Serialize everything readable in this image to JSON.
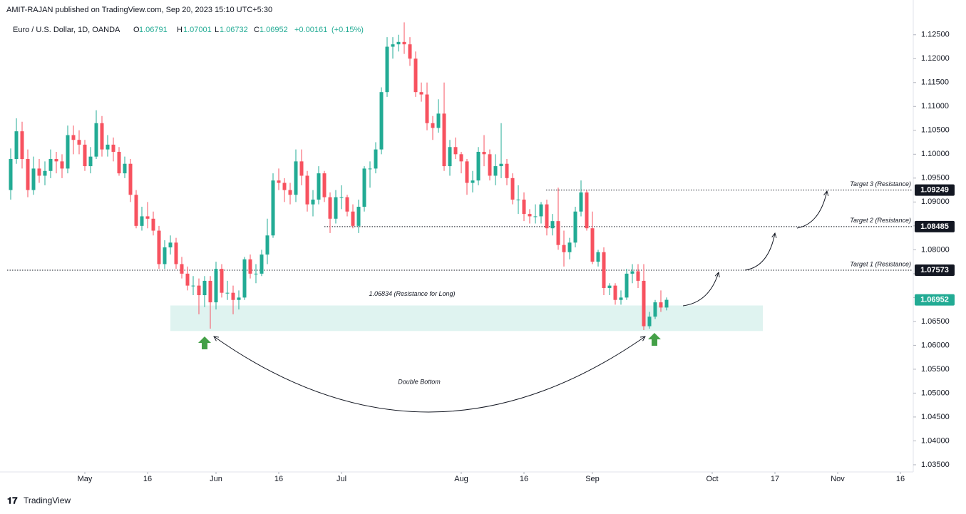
{
  "chart_data": {
    "type": "candlestick",
    "header": "AMIT-RAJAN published on TradingView.com, Sep 20, 2023 15:10 UTC+5:30",
    "title": "Euro / U.S. Dollar, 1D, OANDA",
    "ohlc_labels": [
      "O",
      "H",
      "L",
      "C"
    ],
    "change": {
      "value": 0.00161,
      "label": "+0.00161"
    },
    "change_pct": {
      "value": 0.15,
      "label": "(+0.15%)"
    },
    "footer": "TradingView",
    "up_color": "#22ab94",
    "down_color": "#f7525f",
    "grid": false,
    "x": [
      "2023-04-12",
      "2023-04-13",
      "2023-04-14",
      "2023-04-17",
      "2023-04-18",
      "2023-04-19",
      "2023-04-20",
      "2023-04-21",
      "2023-04-24",
      "2023-04-25",
      "2023-04-26",
      "2023-04-27",
      "2023-04-28",
      "2023-05-01",
      "2023-05-02",
      "2023-05-03",
      "2023-05-04",
      "2023-05-05",
      "2023-05-08",
      "2023-05-09",
      "2023-05-10",
      "2023-05-11",
      "2023-05-12",
      "2023-05-15",
      "2023-05-16",
      "2023-05-17",
      "2023-05-18",
      "2023-05-19",
      "2023-05-22",
      "2023-05-23",
      "2023-05-24",
      "2023-05-25",
      "2023-05-26",
      "2023-05-29",
      "2023-05-30",
      "2023-05-31",
      "2023-06-01",
      "2023-06-02",
      "2023-06-05",
      "2023-06-06",
      "2023-06-07",
      "2023-06-08",
      "2023-06-09",
      "2023-06-12",
      "2023-06-13",
      "2023-06-14",
      "2023-06-15",
      "2023-06-16",
      "2023-06-19",
      "2023-06-20",
      "2023-06-21",
      "2023-06-22",
      "2023-06-23",
      "2023-06-26",
      "2023-06-27",
      "2023-06-28",
      "2023-06-29",
      "2023-06-30",
      "2023-07-03",
      "2023-07-04",
      "2023-07-05",
      "2023-07-06",
      "2023-07-07",
      "2023-07-10",
      "2023-07-11",
      "2023-07-12",
      "2023-07-13",
      "2023-07-14",
      "2023-07-17",
      "2023-07-18",
      "2023-07-19",
      "2023-07-20",
      "2023-07-21",
      "2023-07-24",
      "2023-07-25",
      "2023-07-26",
      "2023-07-27",
      "2023-07-28",
      "2023-07-31",
      "2023-08-01",
      "2023-08-02",
      "2023-08-03",
      "2023-08-04",
      "2023-08-07",
      "2023-08-08",
      "2023-08-09",
      "2023-08-10",
      "2023-08-11",
      "2023-08-14",
      "2023-08-15",
      "2023-08-16",
      "2023-08-17",
      "2023-08-18",
      "2023-08-21",
      "2023-08-22",
      "2023-08-23",
      "2023-08-24",
      "2023-08-25",
      "2023-08-28",
      "2023-08-29",
      "2023-08-30",
      "2023-08-31",
      "2023-09-01",
      "2023-09-04",
      "2023-09-05",
      "2023-09-06",
      "2023-09-07",
      "2023-09-08",
      "2023-09-11",
      "2023-09-12",
      "2023-09-13",
      "2023-09-14",
      "2023-09-15",
      "2023-09-18",
      "2023-09-19",
      "2023-09-20"
    ],
    "open": [
      1.0925,
      1.099,
      1.1048,
      1.099,
      1.0925,
      1.097,
      1.0955,
      1.0965,
      1.099,
      1.0985,
      1.097,
      1.104,
      1.103,
      1.102,
      1.0975,
      1.0995,
      1.1065,
      1.101,
      1.102,
      1.1005,
      1.096,
      1.098,
      1.0915,
      1.085,
      1.087,
      1.0865,
      1.084,
      1.077,
      1.0805,
      1.0815,
      1.077,
      1.075,
      1.0725,
      1.0725,
      1.0705,
      1.0735,
      1.069,
      1.076,
      1.071,
      1.071,
      1.0695,
      1.07,
      1.078,
      1.075,
      1.075,
      1.079,
      1.083,
      1.0945,
      1.094,
      1.0925,
      1.0915,
      1.0985,
      1.0955,
      1.0895,
      1.0905,
      1.096,
      1.091,
      1.0865,
      1.091,
      1.091,
      1.088,
      1.085,
      1.089,
      1.097,
      1.097,
      1.101,
      1.113,
      1.1225,
      1.123,
      1.1235,
      1.123,
      1.12,
      1.113,
      1.1125,
      1.1065,
      1.1055,
      1.1085,
      1.0975,
      1.1015,
      1.1,
      1.0985,
      1.094,
      1.0945,
      1.1005,
      1.1,
      1.0955,
      1.0975,
      1.098,
      1.095,
      1.0905,
      1.0905,
      1.0875,
      1.087,
      1.087,
      1.0895,
      1.0845,
      1.086,
      1.081,
      1.0795,
      1.0815,
      1.088,
      1.092,
      1.0845,
      1.0775,
      1.0795,
      1.072,
      1.0725,
      1.0695,
      1.07,
      1.075,
      1.0755,
      1.0735,
      1.064,
      1.066,
      1.069,
      1.06791
    ],
    "high": [
      1.1012,
      1.1075,
      1.1068,
      1.101,
      1.0995,
      1.099,
      1.0985,
      1.101,
      1.1005,
      1.1,
      1.106,
      1.106,
      1.105,
      1.103,
      1.1015,
      1.1092,
      1.108,
      1.104,
      1.1035,
      1.1015,
      1.0995,
      1.099,
      1.0925,
      1.089,
      1.09,
      1.088,
      1.085,
      1.082,
      1.083,
      1.0825,
      1.0785,
      1.0765,
      1.0745,
      1.074,
      1.0745,
      1.0745,
      1.0775,
      1.077,
      1.0735,
      1.0725,
      1.0715,
      1.0785,
      1.079,
      1.077,
      1.08,
      1.0865,
      1.096,
      1.097,
      1.095,
      1.094,
      1.101,
      1.101,
      1.0965,
      1.0925,
      1.0975,
      1.0965,
      1.092,
      1.0925,
      1.0935,
      1.0915,
      1.0895,
      1.0905,
      1.0975,
      1.0985,
      1.1025,
      1.114,
      1.1245,
      1.1245,
      1.125,
      1.1276,
      1.1245,
      1.1215,
      1.115,
      1.115,
      1.108,
      1.1115,
      1.115,
      1.103,
      1.1035,
      1.1005,
      1.099,
      1.0965,
      1.1015,
      1.104,
      1.101,
      1.1,
      1.1065,
      1.099,
      1.096,
      1.0935,
      1.092,
      1.0885,
      1.0895,
      1.09,
      1.0905,
      1.0875,
      1.093,
      1.084,
      1.0825,
      1.089,
      1.0945,
      1.0925,
      1.088,
      1.08,
      1.0805,
      1.073,
      1.073,
      1.0715,
      1.076,
      1.077,
      1.077,
      1.077,
      1.067,
      1.0695,
      1.0715,
      1.07001
    ],
    "low": [
      1.0905,
      1.098,
      1.097,
      1.091,
      1.0915,
      1.094,
      1.0935,
      1.095,
      1.096,
      1.095,
      1.096,
      1.1,
      1.1,
      1.0965,
      1.096,
      1.099,
      1.0995,
      1.0995,
      1.0985,
      1.0955,
      1.095,
      1.09,
      1.0845,
      1.084,
      1.0845,
      1.083,
      1.076,
      1.076,
      1.079,
      1.076,
      1.074,
      1.0715,
      1.0705,
      1.0665,
      1.068,
      1.0635,
      1.0675,
      1.07,
      1.0695,
      1.0665,
      1.0675,
      1.0695,
      1.074,
      1.073,
      1.0745,
      1.077,
      1.0825,
      1.0925,
      1.09,
      1.0895,
      1.09,
      1.0935,
      1.088,
      1.087,
      1.0895,
      1.09,
      1.0835,
      1.0855,
      1.0885,
      1.087,
      1.0845,
      1.0835,
      1.088,
      1.093,
      1.096,
      1.1,
      1.112,
      1.12,
      1.1215,
      1.121,
      1.1185,
      1.112,
      1.111,
      1.105,
      1.103,
      1.1045,
      1.0965,
      1.0955,
      1.099,
      1.096,
      1.0915,
      1.092,
      1.0935,
      1.0975,
      1.0945,
      1.0935,
      1.095,
      1.0935,
      1.0895,
      1.0875,
      1.086,
      1.0855,
      1.0855,
      1.0855,
      1.083,
      1.083,
      1.08,
      1.0765,
      1.078,
      1.0805,
      1.087,
      1.084,
      1.077,
      1.0765,
      1.0705,
      1.0705,
      1.0685,
      1.0685,
      1.0695,
      1.073,
      1.072,
      1.0632,
      1.0635,
      1.0655,
      1.067,
      1.06732
    ],
    "close": [
      1.099,
      1.1048,
      1.099,
      1.0925,
      1.097,
      1.0955,
      1.0965,
      1.099,
      1.0985,
      1.097,
      1.104,
      1.103,
      1.102,
      1.0975,
      1.0995,
      1.1065,
      1.101,
      1.102,
      1.1005,
      1.096,
      1.098,
      1.0915,
      1.085,
      1.087,
      1.0865,
      1.084,
      1.077,
      1.0805,
      1.0815,
      1.077,
      1.075,
      1.0725,
      1.0725,
      1.0705,
      1.0735,
      1.069,
      1.076,
      1.071,
      1.071,
      1.0695,
      1.07,
      1.078,
      1.075,
      1.075,
      1.079,
      1.083,
      1.0945,
      1.094,
      1.0925,
      1.0915,
      1.0985,
      1.0955,
      1.0895,
      1.0905,
      1.096,
      1.091,
      1.0865,
      1.091,
      1.091,
      1.088,
      1.085,
      1.089,
      1.097,
      1.097,
      1.101,
      1.113,
      1.1225,
      1.123,
      1.1235,
      1.123,
      1.12,
      1.113,
      1.1125,
      1.1065,
      1.1055,
      1.1085,
      1.0975,
      1.1015,
      1.1,
      1.0985,
      1.094,
      1.0945,
      1.1005,
      1.1,
      1.0955,
      1.0975,
      1.098,
      1.095,
      1.0905,
      1.0905,
      1.0875,
      1.087,
      1.087,
      1.0895,
      1.0845,
      1.086,
      1.081,
      1.0795,
      1.0815,
      1.088,
      1.092,
      1.0845,
      1.0775,
      1.0795,
      1.072,
      1.0725,
      1.0695,
      1.07,
      1.075,
      1.0755,
      1.0735,
      1.064,
      1.066,
      1.069,
      1.06791,
      1.06952
    ],
    "ylim": [
      1.0335,
      1.1278
    ],
    "yticks": [
      {
        "value": 1.035,
        "label": "1.03500"
      },
      {
        "value": 1.04,
        "label": "1.04000"
      },
      {
        "value": 1.045,
        "label": "1.04500"
      },
      {
        "value": 1.05,
        "label": "1.05000"
      },
      {
        "value": 1.055,
        "label": "1.05500"
      },
      {
        "value": 1.06,
        "label": "1.06000"
      },
      {
        "value": 1.065,
        "label": "1.06500"
      },
      {
        "value": 1.07,
        "label": "1.07000"
      },
      {
        "value": 1.075,
        "label": "1.07500"
      },
      {
        "value": 1.08,
        "label": "1.08000"
      },
      {
        "value": 1.085,
        "label": "1.08500"
      },
      {
        "value": 1.09,
        "label": "1.09000"
      },
      {
        "value": 1.095,
        "label": "1.09500"
      },
      {
        "value": 1.1,
        "label": "1.10000"
      },
      {
        "value": 1.105,
        "label": "1.10500"
      },
      {
        "value": 1.11,
        "label": "1.11000"
      },
      {
        "value": 1.115,
        "label": "1.11500"
      },
      {
        "value": 1.12,
        "label": "1.12000"
      },
      {
        "value": 1.125,
        "label": "1.12500"
      }
    ],
    "xticks": [
      {
        "value": "2023-05-01",
        "label": "May"
      },
      {
        "value": "2023-05-16",
        "label": "16"
      },
      {
        "value": "2023-06-01",
        "label": "Jun"
      },
      {
        "value": "2023-06-16",
        "label": "16"
      },
      {
        "value": "2023-07-03",
        "label": "Jul"
      },
      {
        "value": "2023-08-01",
        "label": "Aug"
      },
      {
        "value": "2023-08-16",
        "label": "16"
      },
      {
        "value": "2023-09-01",
        "label": "Sep"
      },
      {
        "value": "2023-10-02",
        "label": "Oct"
      },
      {
        "value": "2023-10-17",
        "label": "17"
      },
      {
        "value": "2023-11-01",
        "label": "Nov"
      },
      {
        "value": "2023-11-16",
        "label": "16"
      }
    ],
    "levels": [
      {
        "value": 1.09249,
        "label": "Target 3 (Resistance)"
      },
      {
        "value": 1.08485,
        "label": "Target 2 (Resistance)"
      },
      {
        "value": 1.07573,
        "label": "Target 1 (Resistance)"
      }
    ],
    "zone": {
      "top": 1.06834,
      "bottom": 1.063,
      "label": "1.06834 (Resistance for Long)"
    },
    "annotation": "Double Bottom"
  }
}
